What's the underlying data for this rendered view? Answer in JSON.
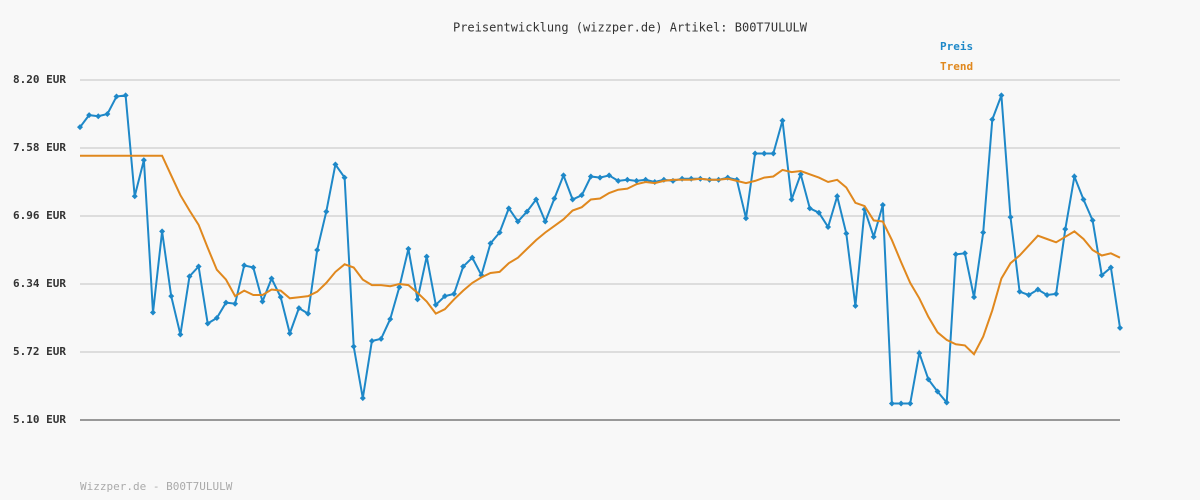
{
  "chart_data": {
    "type": "line",
    "title": "Preisentwicklung (wizzper.de) Artikel: B00T7ULULW",
    "footer": "Wizzper.de - B00T7ULULW",
    "ylim": [
      5.1,
      8.2
    ],
    "yticks": [
      {
        "value": 5.1,
        "label": "5.10 EUR"
      },
      {
        "value": 5.72,
        "label": "5.72 EUR"
      },
      {
        "value": 6.34,
        "label": "6.34 EUR"
      },
      {
        "value": 6.96,
        "label": "6.96 EUR"
      },
      {
        "value": 7.58,
        "label": "7.58 EUR"
      },
      {
        "value": 8.2,
        "label": "8.20 EUR"
      }
    ],
    "grid": true,
    "legend": "top-right",
    "series": [
      {
        "name": "Preis",
        "color": "#1e88c8",
        "markers": true,
        "values": [
          7.77,
          7.88,
          7.87,
          7.89,
          8.05,
          8.06,
          7.14,
          7.47,
          6.08,
          6.82,
          6.23,
          5.88,
          6.41,
          6.5,
          5.98,
          6.03,
          6.17,
          6.16,
          6.51,
          6.49,
          6.18,
          6.39,
          6.22,
          5.89,
          6.12,
          6.07,
          6.65,
          7.0,
          7.43,
          7.31,
          5.77,
          5.3,
          5.82,
          5.84,
          6.02,
          6.31,
          6.66,
          6.2,
          6.59,
          6.15,
          6.23,
          6.25,
          6.5,
          6.58,
          6.42,
          6.71,
          6.81,
          7.03,
          6.91,
          7.0,
          7.11,
          6.91,
          7.12,
          7.33,
          7.11,
          7.15,
          7.32,
          7.31,
          7.33,
          7.28,
          7.29,
          7.28,
          7.29,
          7.27,
          7.29,
          7.28,
          7.3,
          7.3,
          7.3,
          7.29,
          7.29,
          7.31,
          7.29,
          6.94,
          7.53,
          7.53,
          7.53,
          7.83,
          7.11,
          7.34,
          7.03,
          6.99,
          6.86,
          7.14,
          6.8,
          6.14,
          7.02,
          6.77,
          7.06,
          5.25,
          5.25,
          5.25,
          5.71,
          5.47,
          5.36,
          5.26,
          6.61,
          6.62,
          6.22,
          6.81,
          7.84,
          8.06,
          6.95,
          6.27,
          6.24,
          6.29,
          6.24,
          6.25,
          6.84,
          7.32,
          7.11,
          6.92,
          6.42,
          6.49,
          5.94
        ]
      },
      {
        "name": "Trend",
        "color": "#e0881e",
        "markers": false,
        "values": [
          7.51,
          7.51,
          7.51,
          7.51,
          7.51,
          7.51,
          7.51,
          7.51,
          7.51,
          7.51,
          7.33,
          7.15,
          7.01,
          6.88,
          6.67,
          6.47,
          6.38,
          6.23,
          6.28,
          6.24,
          6.24,
          6.29,
          6.28,
          6.21,
          6.22,
          6.23,
          6.27,
          6.35,
          6.45,
          6.52,
          6.49,
          6.38,
          6.33,
          6.33,
          6.32,
          6.34,
          6.33,
          6.26,
          6.18,
          6.07,
          6.11,
          6.2,
          6.28,
          6.35,
          6.4,
          6.44,
          6.45,
          6.53,
          6.58,
          6.66,
          6.74,
          6.81,
          6.87,
          6.93,
          7.01,
          7.04,
          7.11,
          7.12,
          7.17,
          7.2,
          7.21,
          7.25,
          7.27,
          7.26,
          7.28,
          7.29,
          7.29,
          7.29,
          7.3,
          7.29,
          7.29,
          7.3,
          7.28,
          7.26,
          7.28,
          7.31,
          7.32,
          7.38,
          7.36,
          7.37,
          7.34,
          7.31,
          7.27,
          7.29,
          7.22,
          7.08,
          7.05,
          6.92,
          6.91,
          6.74,
          6.54,
          6.35,
          6.21,
          6.04,
          5.9,
          5.83,
          5.79,
          5.78,
          5.7,
          5.86,
          6.1,
          6.39,
          6.53,
          6.6,
          6.69,
          6.78,
          6.75,
          6.72,
          6.77,
          6.82,
          6.75,
          6.65,
          6.6,
          6.62,
          6.58
        ]
      }
    ]
  }
}
